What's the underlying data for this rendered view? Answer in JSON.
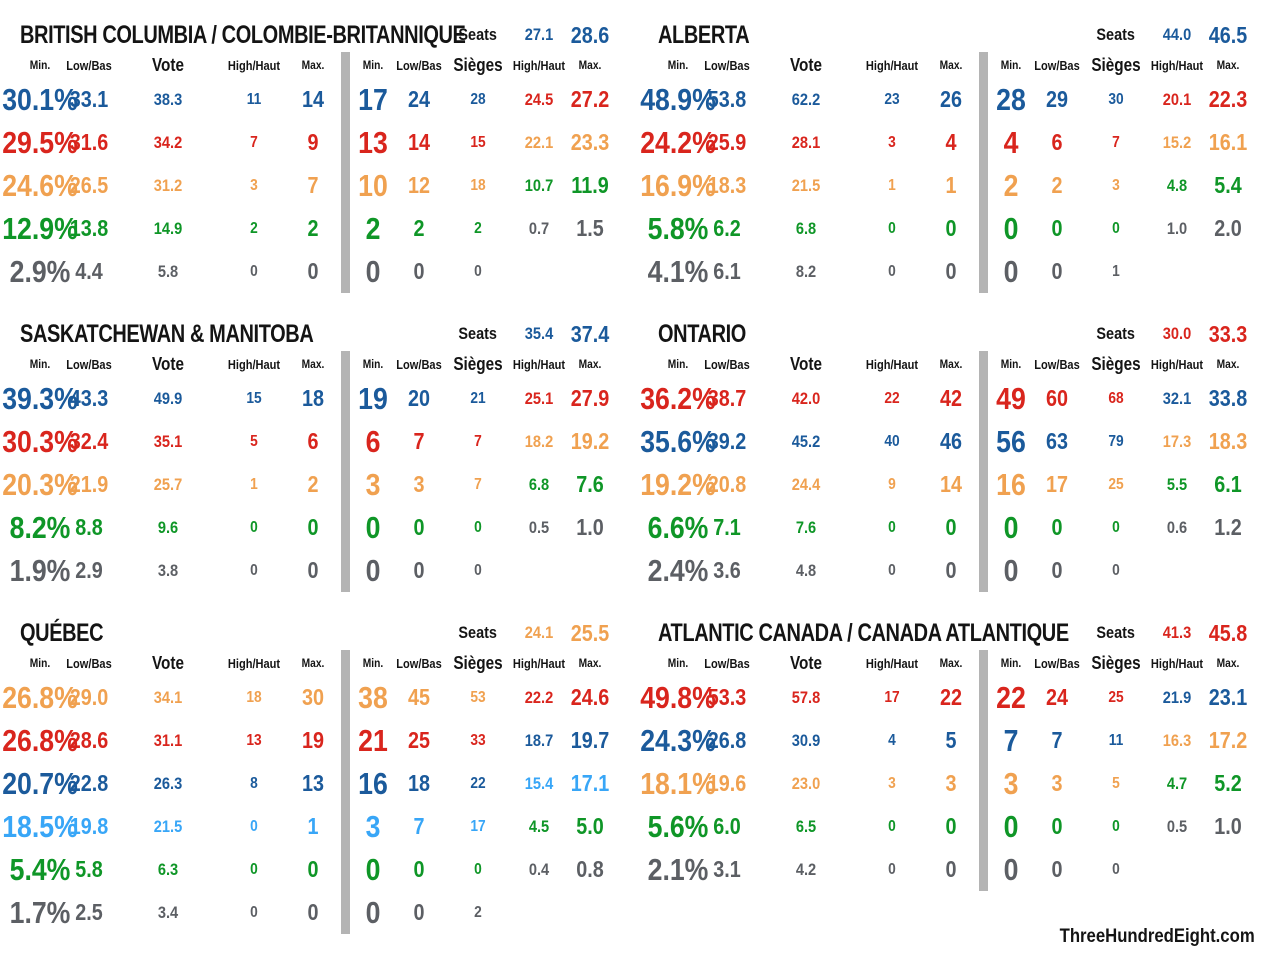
{
  "page": {
    "footer": "ThreeHundredEight.com"
  },
  "labels": {
    "seats": "Seats",
    "vote_cols": [
      "Min.",
      "Low/Bas",
      "Vote",
      "High/Haut",
      "Max."
    ],
    "seat_cols": [
      "Min.",
      "Low/Bas",
      "Sièges",
      "High/Haut",
      "Max."
    ]
  },
  "colors": {
    "blue": "#1b5a9b",
    "red": "#d9251d",
    "orange": "#f0a150",
    "green": "#0f9627",
    "lightblue": "#38a6f7",
    "gray": "#5c5f64",
    "divider": "#b4b4b4",
    "text": "#141414"
  },
  "chart_data": {
    "type": "table",
    "tables": [
      {
        "title": "BRITISH COLUMBIA / COLOMBIE-BRITANNIQUE",
        "rows": [
          {
            "color_key": "blue",
            "vote": [
              "27.1",
              "28.6",
              "30.1%",
              "33.1",
              "38.3"
            ],
            "seats": [
              "11",
              "14",
              "17",
              "24",
              "28"
            ]
          },
          {
            "color_key": "red",
            "vote": [
              "24.5",
              "27.2",
              "29.5%",
              "31.6",
              "34.2"
            ],
            "seats": [
              "7",
              "9",
              "13",
              "14",
              "15"
            ]
          },
          {
            "color_key": "orange",
            "vote": [
              "22.1",
              "23.3",
              "24.6%",
              "26.5",
              "31.2"
            ],
            "seats": [
              "3",
              "7",
              "10",
              "12",
              "18"
            ]
          },
          {
            "color_key": "green",
            "vote": [
              "10.7",
              "11.9",
              "12.9%",
              "13.8",
              "14.9"
            ],
            "seats": [
              "2",
              "2",
              "2",
              "2",
              "2"
            ]
          },
          {
            "color_key": "gray",
            "vote": [
              "0.7",
              "1.5",
              "2.9%",
              "4.4",
              "5.8"
            ],
            "seats": [
              "0",
              "0",
              "0",
              "0",
              "0"
            ]
          }
        ]
      },
      {
        "title": "ALBERTA",
        "rows": [
          {
            "color_key": "blue",
            "vote": [
              "44.0",
              "46.5",
              "48.9%",
              "53.8",
              "62.2"
            ],
            "seats": [
              "23",
              "26",
              "28",
              "29",
              "30"
            ]
          },
          {
            "color_key": "red",
            "vote": [
              "20.1",
              "22.3",
              "24.2%",
              "25.9",
              "28.1"
            ],
            "seats": [
              "3",
              "4",
              "4",
              "6",
              "7"
            ]
          },
          {
            "color_key": "orange",
            "vote": [
              "15.2",
              "16.1",
              "16.9%",
              "18.3",
              "21.5"
            ],
            "seats": [
              "1",
              "1",
              "2",
              "2",
              "3"
            ]
          },
          {
            "color_key": "green",
            "vote": [
              "4.8",
              "5.4",
              "5.8%",
              "6.2",
              "6.8"
            ],
            "seats": [
              "0",
              "0",
              "0",
              "0",
              "0"
            ]
          },
          {
            "color_key": "gray",
            "vote": [
              "1.0",
              "2.0",
              "4.1%",
              "6.1",
              "8.2"
            ],
            "seats": [
              "0",
              "0",
              "0",
              "0",
              "1"
            ]
          }
        ]
      },
      {
        "title": "SASKATCHEWAN & MANITOBA",
        "rows": [
          {
            "color_key": "blue",
            "vote": [
              "35.4",
              "37.4",
              "39.3%",
              "43.3",
              "49.9"
            ],
            "seats": [
              "15",
              "18",
              "19",
              "20",
              "21"
            ]
          },
          {
            "color_key": "red",
            "vote": [
              "25.1",
              "27.9",
              "30.3%",
              "32.4",
              "35.1"
            ],
            "seats": [
              "5",
              "6",
              "6",
              "7",
              "7"
            ]
          },
          {
            "color_key": "orange",
            "vote": [
              "18.2",
              "19.2",
              "20.3%",
              "21.9",
              "25.7"
            ],
            "seats": [
              "1",
              "2",
              "3",
              "3",
              "7"
            ]
          },
          {
            "color_key": "green",
            "vote": [
              "6.8",
              "7.6",
              "8.2%",
              "8.8",
              "9.6"
            ],
            "seats": [
              "0",
              "0",
              "0",
              "0",
              "0"
            ]
          },
          {
            "color_key": "gray",
            "vote": [
              "0.5",
              "1.0",
              "1.9%",
              "2.9",
              "3.8"
            ],
            "seats": [
              "0",
              "0",
              "0",
              "0",
              "0"
            ]
          }
        ]
      },
      {
        "title": "ONTARIO",
        "rows": [
          {
            "color_key": "red",
            "vote": [
              "30.0",
              "33.3",
              "36.2%",
              "38.7",
              "42.0"
            ],
            "seats": [
              "22",
              "42",
              "49",
              "60",
              "68"
            ]
          },
          {
            "color_key": "blue",
            "vote": [
              "32.1",
              "33.8",
              "35.6%",
              "39.2",
              "45.2"
            ],
            "seats": [
              "40",
              "46",
              "56",
              "63",
              "79"
            ]
          },
          {
            "color_key": "orange",
            "vote": [
              "17.3",
              "18.3",
              "19.2%",
              "20.8",
              "24.4"
            ],
            "seats": [
              "9",
              "14",
              "16",
              "17",
              "25"
            ]
          },
          {
            "color_key": "green",
            "vote": [
              "5.5",
              "6.1",
              "6.6%",
              "7.1",
              "7.6"
            ],
            "seats": [
              "0",
              "0",
              "0",
              "0",
              "0"
            ]
          },
          {
            "color_key": "gray",
            "vote": [
              "0.6",
              "1.2",
              "2.4%",
              "3.6",
              "4.8"
            ],
            "seats": [
              "0",
              "0",
              "0",
              "0",
              "0"
            ]
          }
        ]
      },
      {
        "title": "QUÉBEC",
        "rows": [
          {
            "color_key": "orange",
            "vote": [
              "24.1",
              "25.5",
              "26.8%",
              "29.0",
              "34.1"
            ],
            "seats": [
              "18",
              "30",
              "38",
              "45",
              "53"
            ]
          },
          {
            "color_key": "red",
            "vote": [
              "22.2",
              "24.6",
              "26.8%",
              "28.6",
              "31.1"
            ],
            "seats": [
              "13",
              "19",
              "21",
              "25",
              "33"
            ]
          },
          {
            "color_key": "blue",
            "vote": [
              "18.7",
              "19.7",
              "20.7%",
              "22.8",
              "26.3"
            ],
            "seats": [
              "8",
              "13",
              "16",
              "18",
              "22"
            ]
          },
          {
            "color_key": "lightblue",
            "vote": [
              "15.4",
              "17.1",
              "18.5%",
              "19.8",
              "21.5"
            ],
            "seats": [
              "0",
              "1",
              "3",
              "7",
              "17"
            ]
          },
          {
            "color_key": "green",
            "vote": [
              "4.5",
              "5.0",
              "5.4%",
              "5.8",
              "6.3"
            ],
            "seats": [
              "0",
              "0",
              "0",
              "0",
              "0"
            ]
          },
          {
            "color_key": "gray",
            "vote": [
              "0.4",
              "0.8",
              "1.7%",
              "2.5",
              "3.4"
            ],
            "seats": [
              "0",
              "0",
              "0",
              "0",
              "2"
            ]
          }
        ]
      },
      {
        "title": "ATLANTIC CANADA / CANADA ATLANTIQUE",
        "rows": [
          {
            "color_key": "red",
            "vote": [
              "41.3",
              "45.8",
              "49.8%",
              "53.3",
              "57.8"
            ],
            "seats": [
              "17",
              "22",
              "22",
              "24",
              "25"
            ]
          },
          {
            "color_key": "blue",
            "vote": [
              "21.9",
              "23.1",
              "24.3%",
              "26.8",
              "30.9"
            ],
            "seats": [
              "4",
              "5",
              "7",
              "7",
              "11"
            ]
          },
          {
            "color_key": "orange",
            "vote": [
              "16.3",
              "17.2",
              "18.1%",
              "19.6",
              "23.0"
            ],
            "seats": [
              "3",
              "3",
              "3",
              "3",
              "5"
            ]
          },
          {
            "color_key": "green",
            "vote": [
              "4.7",
              "5.2",
              "5.6%",
              "6.0",
              "6.5"
            ],
            "seats": [
              "0",
              "0",
              "0",
              "0",
              "0"
            ]
          },
          {
            "color_key": "gray",
            "vote": [
              "0.5",
              "1.0",
              "2.1%",
              "3.1",
              "4.2"
            ],
            "seats": [
              "0",
              "0",
              "0",
              "0",
              "0"
            ]
          }
        ]
      }
    ]
  }
}
